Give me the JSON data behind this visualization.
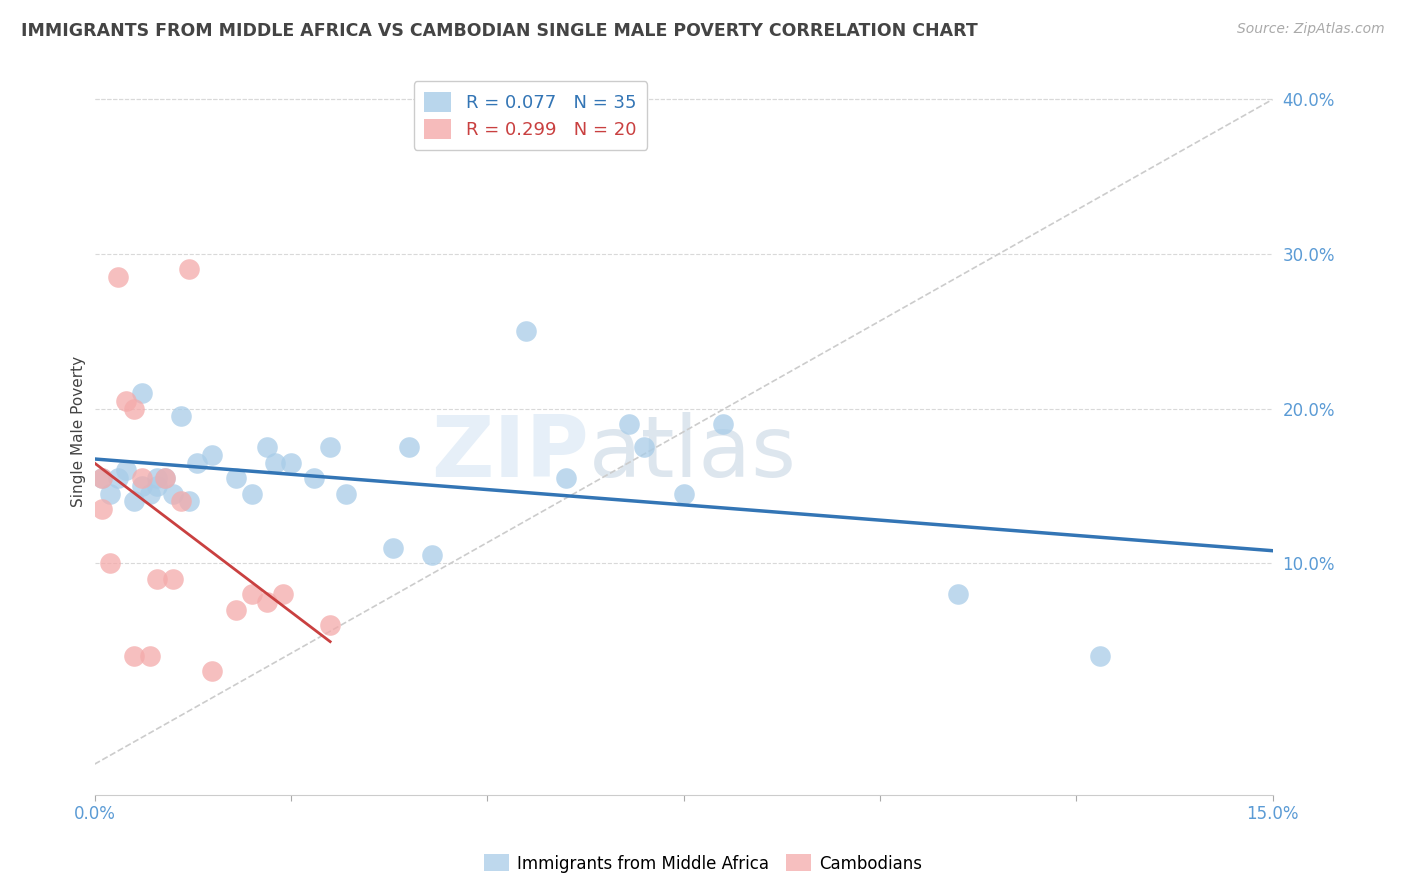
{
  "title": "IMMIGRANTS FROM MIDDLE AFRICA VS CAMBODIAN SINGLE MALE POVERTY CORRELATION CHART",
  "source": "Source: ZipAtlas.com",
  "ylabel": "Single Male Poverty",
  "xlim": [
    0.0,
    0.15
  ],
  "ylim": [
    -0.05,
    0.42
  ],
  "ytick_labels": [
    "10.0%",
    "20.0%",
    "30.0%",
    "40.0%"
  ],
  "ytick_vals": [
    0.1,
    0.2,
    0.3,
    0.4
  ],
  "blue_color": "#a8cce8",
  "pink_color": "#f4aaaa",
  "blue_line_color": "#3375b5",
  "pink_line_color": "#c94040",
  "dashed_line_color": "#cccccc",
  "legend_R_blue": "R = 0.077",
  "legend_N_blue": "N = 35",
  "legend_R_pink": "R = 0.299",
  "legend_N_pink": "N = 20",
  "blue_scatter_x": [
    0.001,
    0.002,
    0.003,
    0.004,
    0.005,
    0.006,
    0.006,
    0.007,
    0.008,
    0.008,
    0.009,
    0.01,
    0.011,
    0.012,
    0.013,
    0.015,
    0.018,
    0.02,
    0.022,
    0.023,
    0.025,
    0.028,
    0.03,
    0.032,
    0.038,
    0.04,
    0.043,
    0.055,
    0.06,
    0.068,
    0.07,
    0.075,
    0.08,
    0.11,
    0.128
  ],
  "blue_scatter_y": [
    0.155,
    0.145,
    0.155,
    0.16,
    0.14,
    0.15,
    0.21,
    0.145,
    0.155,
    0.15,
    0.155,
    0.145,
    0.195,
    0.14,
    0.165,
    0.17,
    0.155,
    0.145,
    0.175,
    0.165,
    0.165,
    0.155,
    0.175,
    0.145,
    0.11,
    0.175,
    0.105,
    0.25,
    0.155,
    0.19,
    0.175,
    0.145,
    0.19,
    0.08,
    0.04
  ],
  "pink_scatter_x": [
    0.001,
    0.001,
    0.002,
    0.003,
    0.004,
    0.005,
    0.005,
    0.006,
    0.007,
    0.008,
    0.009,
    0.01,
    0.011,
    0.012,
    0.015,
    0.018,
    0.02,
    0.022,
    0.024,
    0.03
  ],
  "pink_scatter_y": [
    0.155,
    0.135,
    0.1,
    0.285,
    0.205,
    0.2,
    0.04,
    0.155,
    0.04,
    0.09,
    0.155,
    0.09,
    0.14,
    0.29,
    0.03,
    0.07,
    0.08,
    0.075,
    0.08,
    0.06
  ],
  "watermark_part1": "ZIP",
  "watermark_part2": "atlas",
  "background_color": "#ffffff",
  "grid_color": "#d9d9d9",
  "title_color": "#444444",
  "axis_label_color": "#444444",
  "tick_label_color": "#5b9bd5",
  "source_color": "#aaaaaa"
}
